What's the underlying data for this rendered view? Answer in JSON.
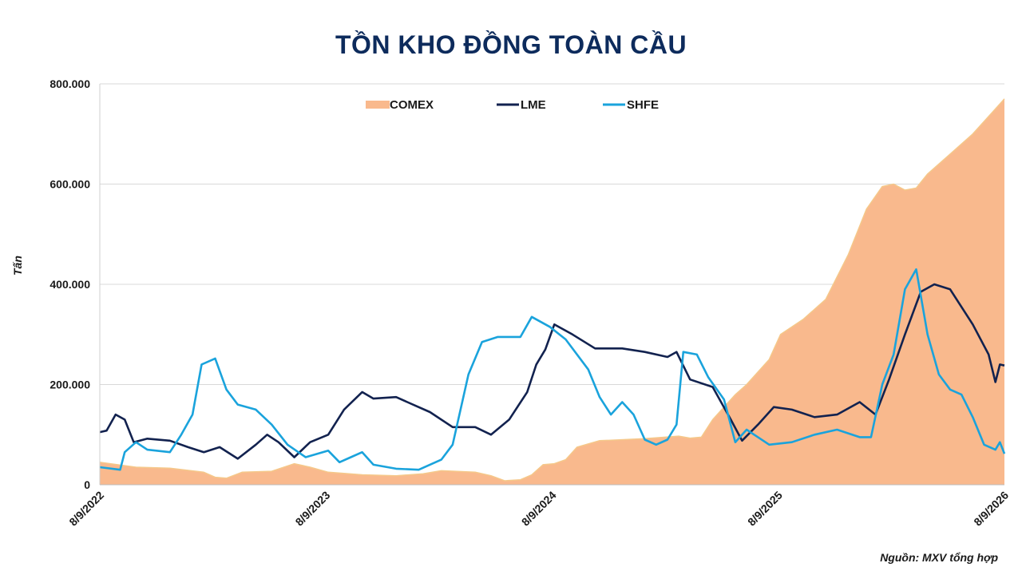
{
  "chart_data": {
    "type": "area",
    "title": "TỒN KHO ĐỒNG TOÀN CẦU",
    "ylabel": "Tấn",
    "xlabel": "",
    "source": "Nguồn: MXV tổng hợp",
    "ylim": [
      0,
      800000
    ],
    "y_ticks": [
      "0",
      "200.000",
      "400.000",
      "600.000",
      "800.000"
    ],
    "y_tick_values": [
      0,
      200000,
      400000,
      600000,
      800000
    ],
    "x_range": [
      2022.69,
      2026.69
    ],
    "x_ticks": [
      "8/9/2022",
      "8/9/2023",
      "8/9/2024",
      "8/9/2025",
      "8/9/2026"
    ],
    "x_tick_values": [
      2022.69,
      2023.69,
      2024.69,
      2025.69,
      2026.69
    ],
    "grid": "horizontal",
    "legend_position": "top-center",
    "colors": {
      "COMEX": "#f9b98d",
      "COMEX_edge": "#f5c88a",
      "LME": "#12224f",
      "SHFE": "#1aa3dc",
      "title": "#0d2b5c",
      "grid": "#d9d9d9"
    },
    "series": [
      {
        "name": "COMEX",
        "style": "area",
        "points": [
          [
            2022.69,
            45000
          ],
          [
            2022.85,
            35000
          ],
          [
            2023.0,
            33000
          ],
          [
            2023.15,
            25000
          ],
          [
            2023.2,
            15000
          ],
          [
            2023.25,
            13000
          ],
          [
            2023.32,
            25000
          ],
          [
            2023.45,
            27000
          ],
          [
            2023.55,
            42000
          ],
          [
            2023.62,
            35000
          ],
          [
            2023.7,
            25000
          ],
          [
            2023.85,
            20000
          ],
          [
            2024.0,
            18000
          ],
          [
            2024.12,
            22000
          ],
          [
            2024.2,
            28000
          ],
          [
            2024.35,
            25000
          ],
          [
            2024.42,
            18000
          ],
          [
            2024.48,
            8000
          ],
          [
            2024.55,
            10000
          ],
          [
            2024.6,
            20000
          ],
          [
            2024.65,
            40000
          ],
          [
            2024.7,
            42000
          ],
          [
            2024.75,
            50000
          ],
          [
            2024.8,
            75000
          ],
          [
            2024.9,
            88000
          ],
          [
            2025.1,
            92000
          ],
          [
            2025.25,
            97000
          ],
          [
            2025.3,
            93000
          ],
          [
            2025.35,
            95000
          ],
          [
            2025.4,
            130000
          ],
          [
            2025.5,
            180000
          ],
          [
            2025.55,
            200000
          ],
          [
            2025.65,
            250000
          ],
          [
            2025.7,
            300000
          ],
          [
            2025.8,
            330000
          ],
          [
            2025.9,
            370000
          ],
          [
            2026.0,
            460000
          ],
          [
            2026.08,
            550000
          ],
          [
            2026.15,
            595000
          ],
          [
            2026.2,
            600000
          ],
          [
            2026.25,
            588000
          ],
          [
            2026.3,
            592000
          ],
          [
            2026.35,
            620000
          ],
          [
            2026.45,
            660000
          ],
          [
            2026.55,
            700000
          ],
          [
            2026.65,
            750000
          ],
          [
            2026.69,
            770000
          ]
        ]
      },
      {
        "name": "LME",
        "style": "line",
        "points": [
          [
            2022.69,
            105000
          ],
          [
            2022.72,
            108000
          ],
          [
            2022.76,
            140000
          ],
          [
            2022.8,
            130000
          ],
          [
            2022.84,
            85000
          ],
          [
            2022.9,
            92000
          ],
          [
            2023.0,
            88000
          ],
          [
            2023.08,
            75000
          ],
          [
            2023.15,
            65000
          ],
          [
            2023.22,
            75000
          ],
          [
            2023.3,
            52000
          ],
          [
            2023.38,
            80000
          ],
          [
            2023.43,
            100000
          ],
          [
            2023.48,
            85000
          ],
          [
            2023.55,
            55000
          ],
          [
            2023.62,
            85000
          ],
          [
            2023.7,
            100000
          ],
          [
            2023.77,
            150000
          ],
          [
            2023.85,
            185000
          ],
          [
            2023.9,
            172000
          ],
          [
            2024.0,
            175000
          ],
          [
            2024.05,
            165000
          ],
          [
            2024.15,
            145000
          ],
          [
            2024.25,
            115000
          ],
          [
            2024.35,
            115000
          ],
          [
            2024.42,
            100000
          ],
          [
            2024.5,
            130000
          ],
          [
            2024.58,
            185000
          ],
          [
            2024.62,
            240000
          ],
          [
            2024.66,
            270000
          ],
          [
            2024.7,
            320000
          ],
          [
            2024.78,
            300000
          ],
          [
            2024.88,
            272000
          ],
          [
            2025.0,
            272000
          ],
          [
            2025.1,
            265000
          ],
          [
            2025.2,
            255000
          ],
          [
            2025.24,
            265000
          ],
          [
            2025.3,
            210000
          ],
          [
            2025.4,
            195000
          ],
          [
            2025.48,
            130000
          ],
          [
            2025.53,
            88000
          ],
          [
            2025.6,
            120000
          ],
          [
            2025.67,
            155000
          ],
          [
            2025.75,
            150000
          ],
          [
            2025.85,
            135000
          ],
          [
            2025.95,
            140000
          ],
          [
            2026.05,
            165000
          ],
          [
            2026.12,
            140000
          ],
          [
            2026.18,
            210000
          ],
          [
            2026.25,
            300000
          ],
          [
            2026.32,
            385000
          ],
          [
            2026.38,
            400000
          ],
          [
            2026.45,
            390000
          ],
          [
            2026.55,
            320000
          ],
          [
            2026.62,
            260000
          ],
          [
            2026.65,
            205000
          ],
          [
            2026.67,
            240000
          ],
          [
            2026.69,
            238000
          ]
        ]
      },
      {
        "name": "SHFE",
        "style": "line",
        "points": [
          [
            2022.69,
            35000
          ],
          [
            2022.78,
            30000
          ],
          [
            2022.8,
            65000
          ],
          [
            2022.85,
            85000
          ],
          [
            2022.9,
            70000
          ],
          [
            2023.0,
            65000
          ],
          [
            2023.05,
            100000
          ],
          [
            2023.1,
            140000
          ],
          [
            2023.14,
            240000
          ],
          [
            2023.2,
            252000
          ],
          [
            2023.25,
            190000
          ],
          [
            2023.3,
            160000
          ],
          [
            2023.38,
            150000
          ],
          [
            2023.45,
            120000
          ],
          [
            2023.52,
            80000
          ],
          [
            2023.6,
            55000
          ],
          [
            2023.7,
            68000
          ],
          [
            2023.75,
            45000
          ],
          [
            2023.8,
            55000
          ],
          [
            2023.85,
            65000
          ],
          [
            2023.9,
            40000
          ],
          [
            2024.0,
            32000
          ],
          [
            2024.1,
            30000
          ],
          [
            2024.2,
            50000
          ],
          [
            2024.25,
            80000
          ],
          [
            2024.32,
            220000
          ],
          [
            2024.38,
            285000
          ],
          [
            2024.45,
            295000
          ],
          [
            2024.55,
            295000
          ],
          [
            2024.6,
            335000
          ],
          [
            2024.68,
            315000
          ],
          [
            2024.75,
            290000
          ],
          [
            2024.85,
            230000
          ],
          [
            2024.9,
            175000
          ],
          [
            2024.95,
            140000
          ],
          [
            2025.0,
            165000
          ],
          [
            2025.05,
            140000
          ],
          [
            2025.1,
            90000
          ],
          [
            2025.15,
            80000
          ],
          [
            2025.2,
            90000
          ],
          [
            2025.24,
            120000
          ],
          [
            2025.27,
            265000
          ],
          [
            2025.33,
            260000
          ],
          [
            2025.38,
            215000
          ],
          [
            2025.45,
            170000
          ],
          [
            2025.5,
            85000
          ],
          [
            2025.55,
            110000
          ],
          [
            2025.6,
            95000
          ],
          [
            2025.65,
            80000
          ],
          [
            2025.75,
            85000
          ],
          [
            2025.85,
            100000
          ],
          [
            2025.95,
            110000
          ],
          [
            2026.05,
            95000
          ],
          [
            2026.1,
            95000
          ],
          [
            2026.15,
            200000
          ],
          [
            2026.2,
            260000
          ],
          [
            2026.25,
            390000
          ],
          [
            2026.3,
            430000
          ],
          [
            2026.35,
            300000
          ],
          [
            2026.4,
            220000
          ],
          [
            2026.45,
            190000
          ],
          [
            2026.5,
            180000
          ],
          [
            2026.55,
            135000
          ],
          [
            2026.6,
            80000
          ],
          [
            2026.65,
            70000
          ],
          [
            2026.67,
            85000
          ],
          [
            2026.69,
            62000
          ]
        ]
      }
    ]
  }
}
